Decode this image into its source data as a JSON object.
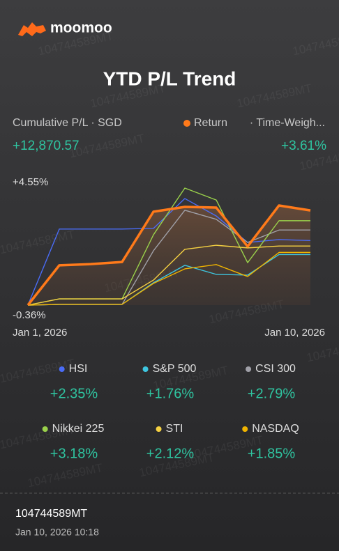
{
  "brand": "moomoo",
  "watermark": "104744589MT",
  "summary": {
    "pl_label": "Cumulative P/L · SGD",
    "pl_value": "+12,870.57",
    "return_method": "· Time-Weigh...",
    "return_value": "+3.61%"
  },
  "footer": {
    "account": "104744589MT",
    "timestamp": "Jan 10, 2026 10:18"
  },
  "chart_data": {
    "type": "line",
    "title": "YTD P/L Trend",
    "categories": [
      "Jan 1, 2026",
      null,
      null,
      null,
      null,
      null,
      null,
      null,
      null,
      "Jan 10, 2026"
    ],
    "ylim": [
      -0.36,
      4.55
    ],
    "yticks": [
      {
        "value": 4.55,
        "label": "+4.55%"
      },
      {
        "value": -0.36,
        "label": "-0.36%"
      }
    ],
    "grid": false,
    "series": [
      {
        "name": "Return",
        "color": "#ff7a1a",
        "values": [
          -0.36,
          1.31,
          1.36,
          1.45,
          3.56,
          3.76,
          3.73,
          2.1,
          3.82,
          3.61
        ]
      },
      {
        "name": "HSI",
        "color": "#4a6cf7",
        "values": [
          -0.36,
          2.83,
          2.83,
          2.83,
          2.86,
          4.11,
          3.38,
          2.27,
          2.39,
          2.35
        ],
        "summary": {
          "value": 2.35,
          "label": "+2.35%"
        }
      },
      {
        "name": "S&P 500",
        "color": "#3ec6e0",
        "values": [
          -0.36,
          -0.33,
          -0.33,
          -0.33,
          0.58,
          1.31,
          0.93,
          0.9,
          1.76,
          1.76
        ],
        "summary": {
          "value": 1.76,
          "label": "+1.76%"
        }
      },
      {
        "name": "CSI 300",
        "color": "#a0a0a8",
        "values": [
          -0.36,
          -0.33,
          -0.33,
          -0.33,
          1.92,
          3.62,
          3.24,
          2.27,
          2.79,
          2.79
        ],
        "summary": {
          "value": 2.79,
          "label": "+2.79%"
        }
      },
      {
        "name": "Nikkei 225",
        "color": "#9ad14b",
        "values": [
          -0.36,
          -0.1,
          -0.1,
          -0.1,
          2.59,
          4.55,
          4.05,
          1.42,
          3.18,
          3.18
        ],
        "summary": {
          "value": 3.18,
          "label": "+3.18%"
        }
      },
      {
        "name": "STI",
        "color": "#f5d142",
        "values": [
          -0.36,
          -0.1,
          -0.1,
          -0.1,
          0.69,
          1.98,
          2.15,
          2.04,
          2.12,
          2.12
        ],
        "summary": {
          "value": 2.12,
          "label": "+2.12%"
        }
      },
      {
        "name": "NASDAQ",
        "color": "#f0b400",
        "values": [
          -0.36,
          -0.33,
          -0.33,
          -0.33,
          0.55,
          1.16,
          1.34,
          0.84,
          1.85,
          1.85
        ],
        "summary": {
          "value": 1.85,
          "label": "+1.85%"
        }
      }
    ]
  }
}
